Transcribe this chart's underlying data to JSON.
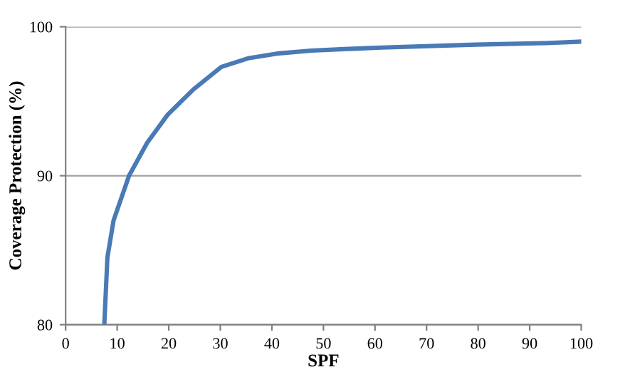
{
  "chart_data": {
    "type": "line",
    "xlabel": "SPF",
    "ylabel": "Coverage Protection (%)",
    "xlim": [
      0,
      100
    ],
    "xticks": [
      0,
      10,
      20,
      30,
      40,
      50,
      60,
      70,
      80,
      90,
      100
    ],
    "ylim": [
      80,
      100
    ],
    "yticks": [
      80,
      90,
      100
    ],
    "grid": "y",
    "marker": "none",
    "line_style": "solid",
    "series": [
      {
        "color": "#4a7ab5",
        "x": [
          7.5,
          8.1,
          9.3,
          12.3,
          15.8,
          19.8,
          24.8,
          30.2,
          35.6,
          41,
          47.7,
          54,
          61.3,
          79.5,
          93.1,
          100
        ],
        "values": [
          80,
          84.5,
          87,
          90,
          92.2,
          94.1,
          95.8,
          97.3,
          97.9,
          98.2,
          98.4,
          98.5,
          98.6,
          98.8,
          98.9,
          99
        ]
      }
    ]
  }
}
